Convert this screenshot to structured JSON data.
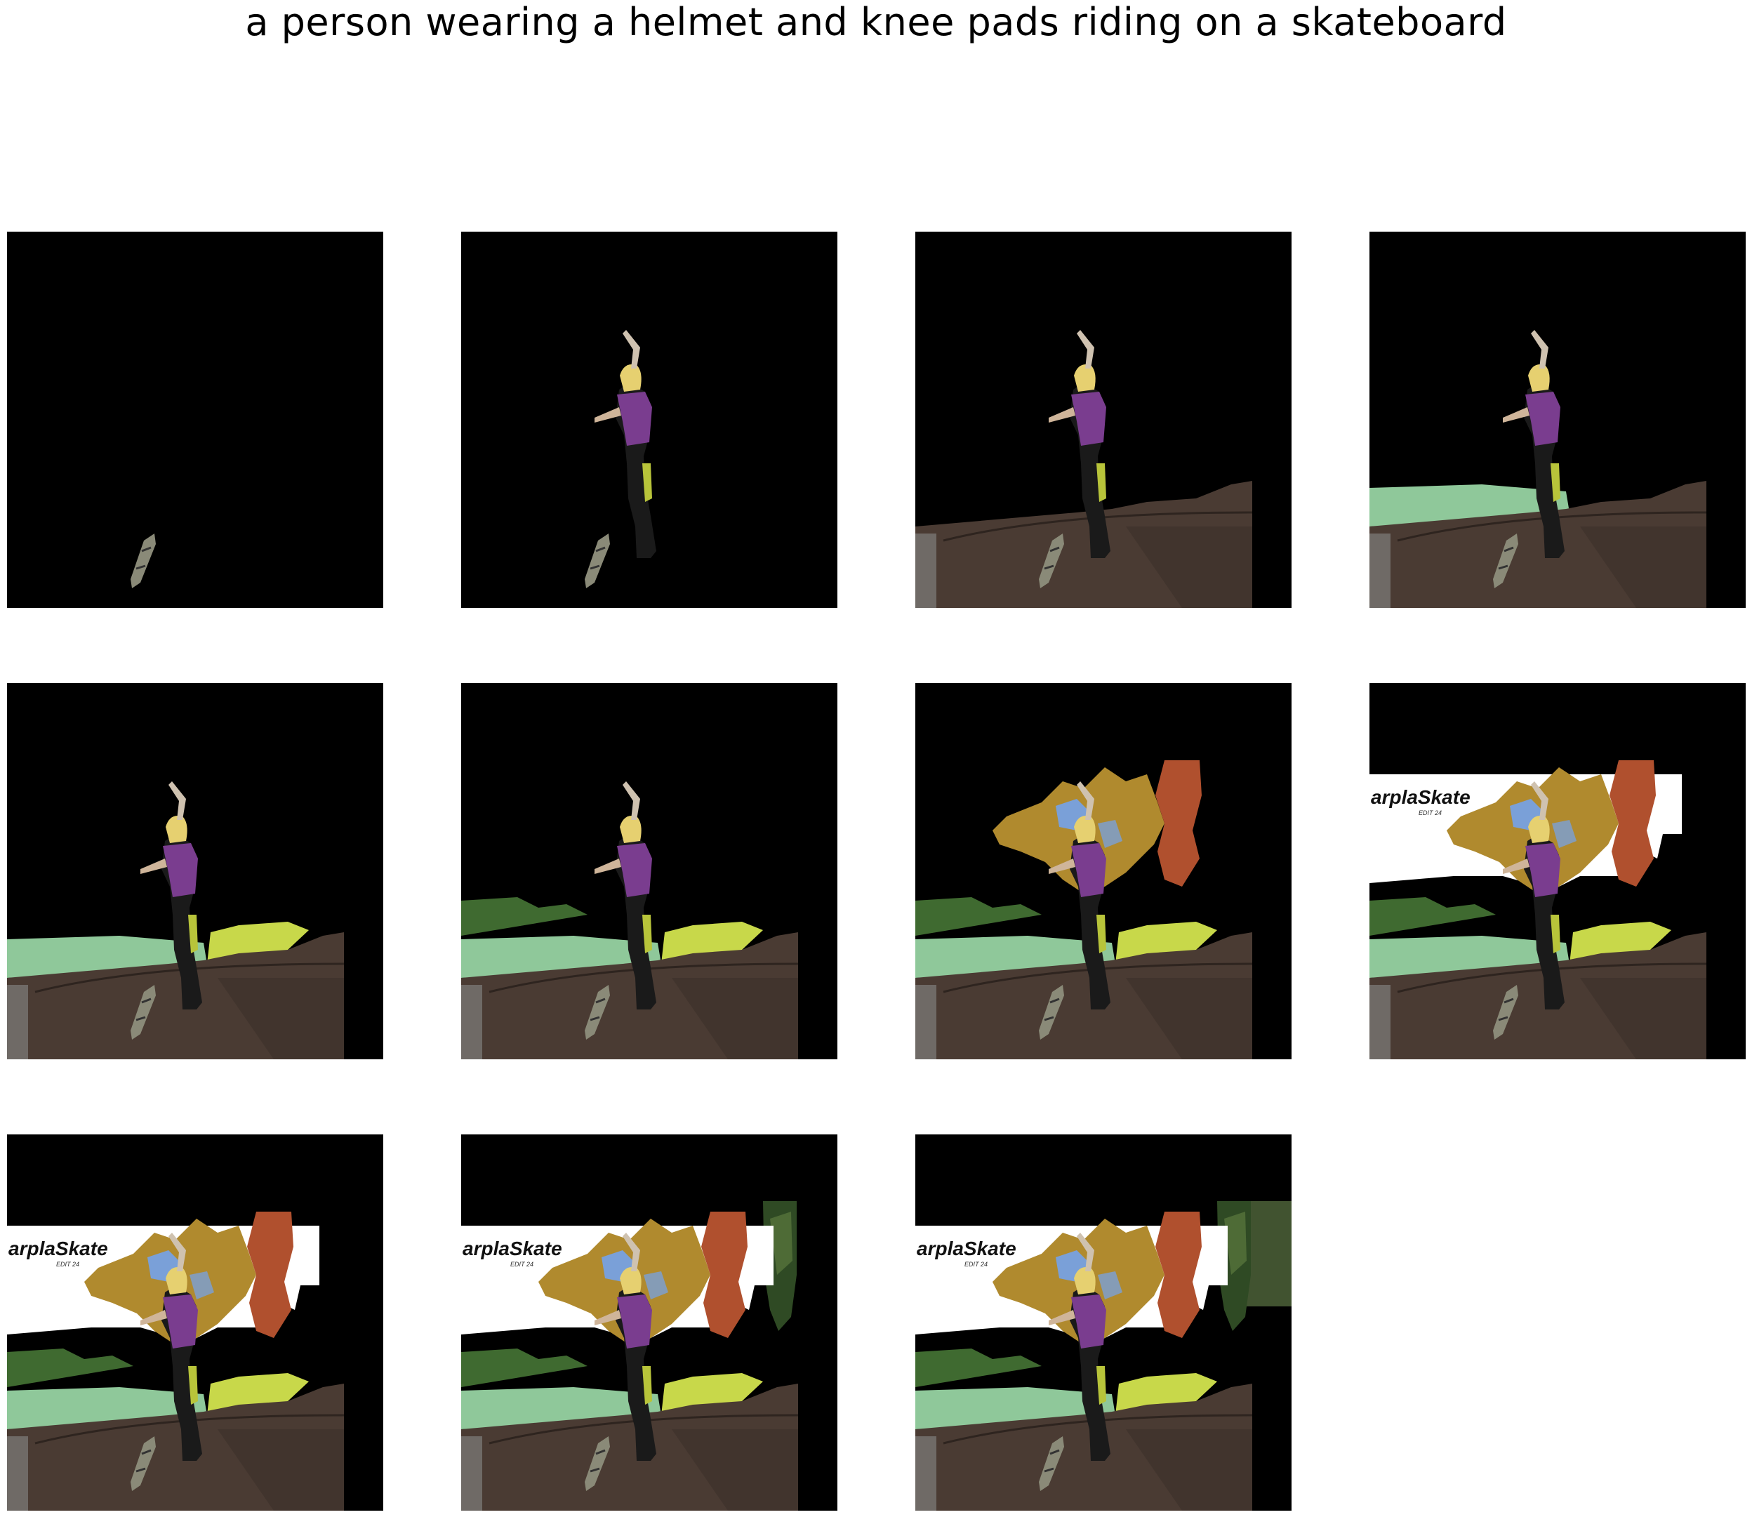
{
  "title": "a person wearing a helmet and knee pads riding on a skateboard",
  "panels": [
    {
      "stage": 1,
      "segments": [
        "skateboard"
      ]
    },
    {
      "stage": 2,
      "segments": [
        "skateboard",
        "person"
      ]
    },
    {
      "stage": 3,
      "segments": [
        "skateboard",
        "person",
        "ramp"
      ]
    },
    {
      "stage": 4,
      "segments": [
        "skateboard",
        "person",
        "ramp",
        "grass-left"
      ]
    },
    {
      "stage": 5,
      "segments": [
        "skateboard",
        "person",
        "ramp",
        "grass-left",
        "grass-bright"
      ]
    },
    {
      "stage": 6,
      "segments": [
        "skateboard",
        "person",
        "ramp",
        "grass-left",
        "grass-bright",
        "bushes"
      ]
    },
    {
      "stage": 7,
      "segments": [
        "skateboard",
        "person",
        "ramp",
        "grass-left",
        "grass-bright",
        "bushes",
        "tree-autumn"
      ]
    },
    {
      "stage": 8,
      "segments": [
        "skateboard",
        "person",
        "ramp",
        "grass-left",
        "grass-bright",
        "bushes",
        "tree-autumn",
        "banner"
      ]
    },
    {
      "stage": 9,
      "segments": [
        "skateboard",
        "person",
        "ramp",
        "grass-left",
        "grass-bright",
        "bushes",
        "tree-autumn",
        "banner",
        "building"
      ]
    },
    {
      "stage": 10,
      "segments": [
        "skateboard",
        "person",
        "ramp",
        "grass-left",
        "grass-bright",
        "bushes",
        "tree-autumn",
        "banner",
        "building",
        "tree-green"
      ]
    },
    {
      "stage": 11,
      "segments": [
        "skateboard",
        "person",
        "ramp",
        "grass-left",
        "grass-bright",
        "bushes",
        "tree-autumn",
        "banner",
        "building",
        "tree-green",
        "tree-right"
      ]
    }
  ],
  "banner_text": "arplaSkate",
  "banner_subtext": "EDIT 24",
  "colors": {
    "background": "#000000",
    "ramp": "#4a3b33",
    "grass": "#8fc89a",
    "grass_bright": "#c8d84a",
    "tree_autumn": "#b08a2e",
    "tree_red": "#b0502e",
    "shirt": "#7a3d8f",
    "hair": "#e6d070"
  }
}
